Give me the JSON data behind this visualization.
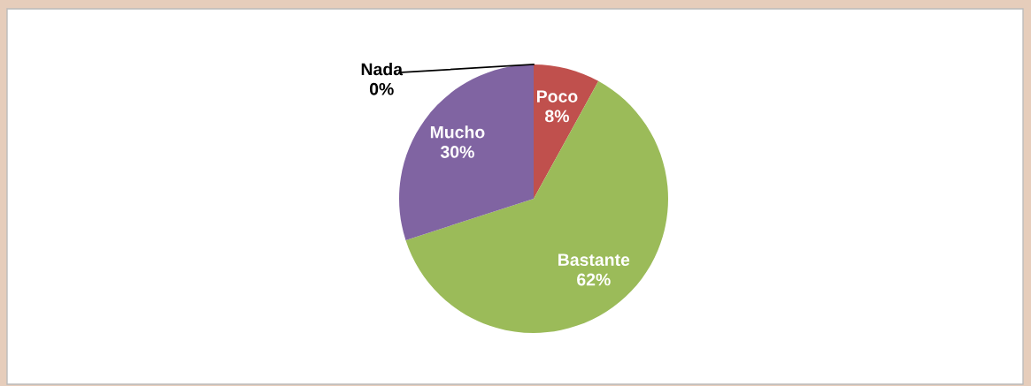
{
  "chart_data": {
    "type": "pie",
    "categories": [
      "Nada",
      "Poco",
      "Bastante",
      "Mucho"
    ],
    "values": [
      0,
      8,
      62,
      30
    ],
    "value_labels": [
      "0%",
      "8%",
      "62%",
      "30%"
    ],
    "colors": [
      "#4f81bd",
      "#c0504d",
      "#9bbb59",
      "#8064a2"
    ],
    "legend": false
  }
}
